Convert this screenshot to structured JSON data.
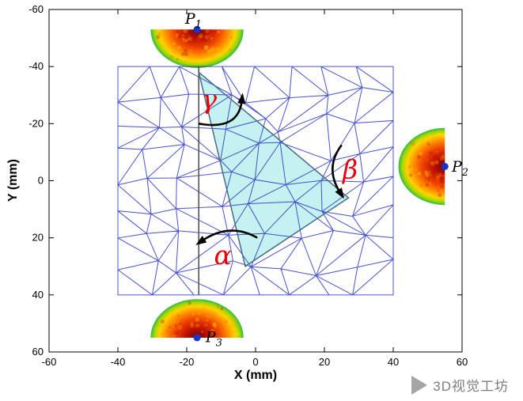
{
  "chart_data": {
    "type": "scatter",
    "subtype": "fem-triangular-mesh-with-transducers",
    "title": "",
    "xlabel": "X (mm)",
    "ylabel": "Y (mm)",
    "xlim": [
      -60,
      60
    ],
    "ylim": [
      -60,
      60
    ],
    "y_axis_inverted": true,
    "xticks": [
      -60,
      -40,
      -20,
      0,
      20,
      40,
      60
    ],
    "yticks": [
      -60,
      -40,
      -20,
      0,
      20,
      40,
      60
    ],
    "grid": false,
    "axis_color": "#000000",
    "mesh": {
      "x_min": -40,
      "x_max": 40,
      "y_min": -40,
      "y_max": 40,
      "divisions": 8,
      "line_color": "#2a35c8",
      "seed": 7
    },
    "divider_line": {
      "x": -16.5,
      "y_from": -40,
      "y_to": 40,
      "color": "#555555"
    },
    "highlight_triangle": {
      "vertices": [
        [
          -16.5,
          -38
        ],
        [
          27,
          6
        ],
        [
          -3,
          30
        ]
      ],
      "fill": "#b5efec",
      "opacity": 0.8,
      "border_color": "#4a6b85"
    },
    "transducer_radius_mm": 13.5,
    "transducer_colormap": [
      "#6f0000",
      "#c81400",
      "#f04800",
      "#ff9000",
      "#ffd200",
      "#a0d800",
      "#2fb84a"
    ],
    "marker_color": "#1a35cc",
    "points": [
      {
        "name": "P1",
        "label": "P",
        "sub": "1",
        "x": -17,
        "y": -53,
        "orientation": "down",
        "label_x": -20.5,
        "label_y": -55
      },
      {
        "name": "P2",
        "label": "P",
        "sub": "2",
        "x": 55,
        "y": -5,
        "orientation": "left",
        "label_x": 57,
        "label_y": -3.2
      },
      {
        "name": "P3",
        "label": "P",
        "sub": "3",
        "x": -17,
        "y": 55,
        "orientation": "up",
        "label_x": -14.5,
        "label_y": 56.5
      }
    ],
    "angle_annotations": [
      {
        "name": "gamma",
        "symbol": "γ",
        "x": -13.5,
        "y": -28.5,
        "color": "#e8000b",
        "arc_from": [
          -16.5,
          -20
        ],
        "arc_ctrl": [
          -5,
          -17.5
        ],
        "arc_to": [
          -4,
          -28
        ]
      },
      {
        "name": "beta",
        "symbol": "β",
        "x": 27.5,
        "y": -4,
        "color": "#e8000b",
        "arc_from": [
          25,
          -12.5
        ],
        "arc_ctrl": [
          20,
          -4.5
        ],
        "arc_to": [
          24.5,
          4
        ]
      },
      {
        "name": "alpha",
        "symbol": "α",
        "x": -9.5,
        "y": 26,
        "color": "#e8000b",
        "arc_from": [
          0.5,
          20
        ],
        "arc_ctrl": [
          -7.5,
          14.5
        ],
        "arc_to": [
          -15.5,
          21
        ]
      }
    ]
  },
  "watermark": {
    "text": "3D视觉工坊"
  }
}
